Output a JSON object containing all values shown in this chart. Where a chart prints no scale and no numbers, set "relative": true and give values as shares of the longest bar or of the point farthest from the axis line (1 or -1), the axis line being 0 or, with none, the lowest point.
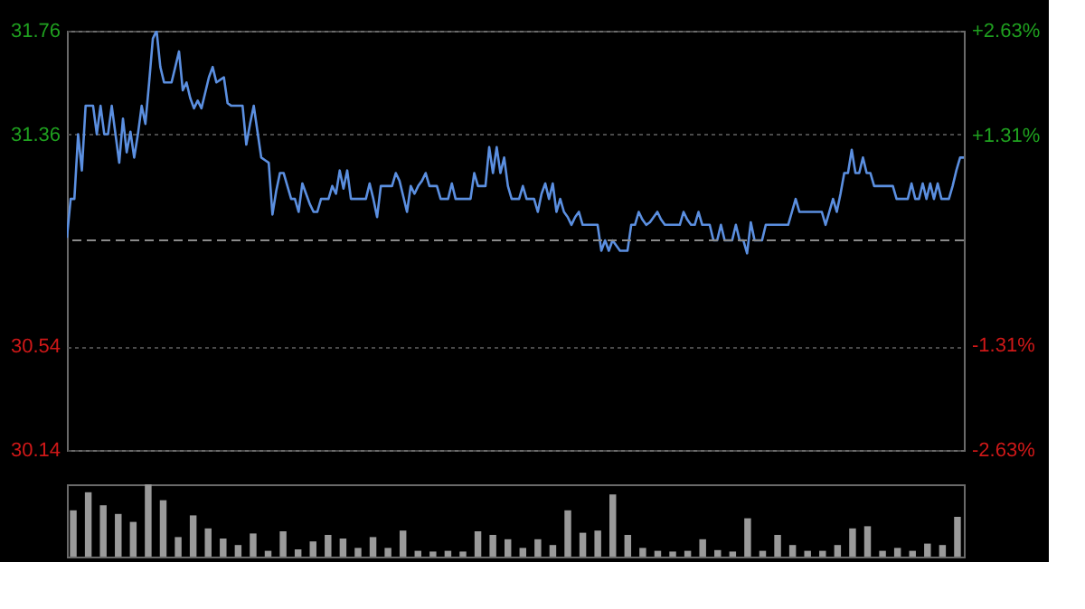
{
  "chart_data": [
    {
      "type": "line",
      "color": "#5b8fe0",
      "categories": [
        null,
        null,
        null,
        null,
        null,
        null,
        null,
        null,
        null,
        null,
        null,
        null,
        null,
        null,
        null,
        null,
        null,
        null,
        null,
        null,
        null,
        null,
        null,
        null,
        null,
        null,
        null,
        null,
        null,
        null,
        null,
        null,
        null,
        null,
        null,
        null,
        null,
        null,
        null,
        null,
        null,
        null,
        null,
        null,
        null,
        null,
        null,
        null,
        null,
        null,
        null,
        null,
        null,
        null,
        null,
        null,
        null,
        null,
        null,
        null,
        null,
        null,
        null,
        null,
        null,
        null,
        null,
        null,
        null,
        null,
        null,
        null,
        null,
        null,
        null,
        null,
        null,
        null,
        null,
        null,
        null,
        null,
        null,
        null,
        null,
        null,
        null,
        null,
        null,
        null,
        null,
        null,
        null,
        null,
        null,
        null,
        null,
        null,
        null,
        null,
        null,
        null,
        null,
        null,
        null,
        null,
        null,
        null,
        null,
        null,
        null,
        null,
        null,
        null,
        null,
        null,
        null,
        null,
        null,
        null,
        null,
        null,
        null,
        null,
        null,
        null,
        null,
        null,
        null,
        null,
        null,
        null,
        null,
        null,
        null,
        null,
        null,
        null,
        null,
        null,
        null,
        null,
        null,
        null,
        null,
        null,
        null,
        null,
        null,
        null,
        null,
        null,
        null,
        null,
        null,
        null,
        null,
        null,
        null,
        null,
        null,
        null,
        null,
        null,
        null,
        null,
        null,
        null,
        null,
        null,
        null,
        null,
        null,
        null,
        null,
        null,
        null,
        null,
        null,
        null,
        null,
        null,
        null,
        null,
        null,
        null,
        null,
        null,
        null,
        null,
        null,
        null,
        null,
        null,
        null,
        null,
        null,
        null,
        null,
        null,
        null,
        null,
        null,
        null,
        null,
        null,
        null,
        null,
        null,
        null,
        null,
        null,
        null,
        null,
        null,
        null,
        null,
        null,
        null,
        null,
        null,
        null,
        null,
        null,
        null,
        null,
        null,
        null,
        null,
        null,
        null,
        null,
        null,
        null,
        null,
        null,
        null,
        null,
        null,
        null,
        null
      ],
      "values": [
        30.96,
        31.11,
        31.11,
        31.36,
        31.22,
        31.47,
        31.47,
        31.47,
        31.36,
        31.47,
        31.36,
        31.36,
        31.47,
        31.36,
        31.25,
        31.42,
        31.29,
        31.37,
        31.27,
        31.36,
        31.47,
        31.4,
        31.56,
        31.73,
        31.76,
        31.62,
        31.56,
        31.56,
        31.56,
        31.62,
        31.68,
        31.53,
        31.56,
        31.5,
        31.46,
        31.49,
        31.46,
        31.52,
        31.58,
        31.62,
        31.56,
        31.57,
        31.58,
        31.48,
        31.47,
        31.47,
        31.47,
        31.47,
        31.32,
        31.4,
        31.47,
        31.37,
        31.27,
        31.26,
        31.25,
        31.05,
        31.14,
        31.21,
        31.21,
        31.16,
        31.11,
        31.11,
        31.06,
        31.17,
        31.13,
        31.09,
        31.06,
        31.06,
        31.11,
        31.11,
        31.11,
        31.16,
        31.13,
        31.22,
        31.15,
        31.22,
        31.11,
        31.11,
        31.11,
        31.11,
        31.11,
        31.17,
        31.11,
        31.04,
        31.16,
        31.16,
        31.16,
        31.16,
        31.21,
        31.18,
        31.12,
        31.06,
        31.16,
        31.13,
        31.16,
        31.18,
        31.21,
        31.16,
        31.16,
        31.16,
        31.11,
        31.11,
        31.11,
        31.17,
        31.11,
        31.11,
        31.11,
        31.11,
        31.11,
        31.21,
        31.16,
        31.16,
        31.16,
        31.31,
        31.21,
        31.31,
        31.21,
        31.27,
        31.16,
        31.11,
        31.11,
        31.11,
        31.16,
        31.11,
        31.11,
        31.11,
        31.06,
        31.13,
        31.17,
        31.11,
        31.17,
        31.06,
        31.11,
        31.06,
        31.04,
        31.01,
        31.04,
        31.06,
        31.01,
        31.01,
        31.01,
        31.01,
        31.01,
        30.91,
        30.95,
        30.91,
        30.95,
        30.93,
        30.91,
        30.91,
        30.91,
        31.01,
        31.01,
        31.06,
        31.03,
        31.01,
        31.02,
        31.04,
        31.06,
        31.03,
        31.01,
        31.01,
        31.01,
        31.01,
        31.01,
        31.06,
        31.03,
        31.01,
        31.01,
        31.06,
        31.01,
        31.01,
        31.01,
        30.95,
        30.95,
        31.01,
        30.95,
        30.95,
        30.95,
        31.01,
        30.95,
        30.95,
        30.9,
        31.02,
        30.95,
        30.95,
        30.95,
        31.01,
        31.01,
        31.01,
        31.01,
        31.01,
        31.01,
        31.01,
        31.06,
        31.11,
        31.06,
        31.06,
        31.06,
        31.06,
        31.06,
        31.06,
        31.06,
        31.01,
        31.06,
        31.11,
        31.06,
        31.13,
        31.21,
        31.21,
        31.3,
        31.21,
        31.21,
        31.27,
        31.21,
        31.21,
        31.16,
        31.16,
        31.16,
        31.16,
        31.16,
        31.16,
        31.11,
        31.11,
        31.11,
        31.11,
        31.17,
        31.11,
        31.11,
        31.17,
        31.11,
        31.17,
        31.11,
        31.17,
        31.11,
        31.11,
        31.11,
        31.16,
        31.22,
        31.27,
        31.27
      ],
      "ylim": [
        30.14,
        31.76
      ],
      "yticks": [
        30.14,
        30.54,
        31.36,
        31.76
      ],
      "y2lim": [
        -2.63,
        2.63
      ],
      "y2ticks": [
        {
          "value": -2.63,
          "label": "-2.63%"
        },
        {
          "value": -1.31,
          "label": "-1.31%"
        },
        {
          "value": 1.31,
          "label": "+1.31%"
        },
        {
          "value": 2.63,
          "label": "+2.63%"
        }
      ],
      "ref_lines": [
        {
          "axis": "y",
          "value": 30.95,
          "line_style": "dashed"
        }
      ],
      "grid": "y",
      "tick_labels": "y"
    },
    {
      "type": "bar",
      "relative": true,
      "color": "#9a9a9a",
      "categories": [
        null,
        null,
        null,
        null,
        null,
        null,
        null,
        null,
        null,
        null,
        null,
        null,
        null,
        null,
        null,
        null,
        null,
        null,
        null,
        null,
        null,
        null,
        null,
        null,
        null,
        null,
        null,
        null,
        null,
        null,
        null,
        null,
        null,
        null,
        null,
        null,
        null,
        null,
        null,
        null,
        null,
        null,
        null,
        null,
        null,
        null,
        null,
        null,
        null,
        null,
        null,
        null,
        null,
        null,
        null,
        null,
        null,
        null,
        null,
        null
      ],
      "values": [
        0.64,
        0.89,
        0.71,
        0.59,
        0.48,
        1.0,
        0.78,
        0.27,
        0.57,
        0.39,
        0.25,
        0.16,
        0.32,
        0.08,
        0.35,
        0.1,
        0.21,
        0.3,
        0.25,
        0.12,
        0.27,
        0.12,
        0.36,
        0.08,
        0.07,
        0.08,
        0.07,
        0.35,
        0.3,
        0.24,
        0.12,
        0.24,
        0.16,
        0.64,
        0.33,
        0.36,
        0.86,
        0.3,
        0.12,
        0.08,
        0.07,
        0.08,
        0.24,
        0.09,
        0.07,
        0.53,
        0.08,
        0.3,
        0.16,
        0.08,
        0.08,
        0.16,
        0.39,
        0.42,
        0.08,
        0.12,
        0.08,
        0.18,
        0.16,
        0.55
      ],
      "tick_labels": false
    }
  ]
}
